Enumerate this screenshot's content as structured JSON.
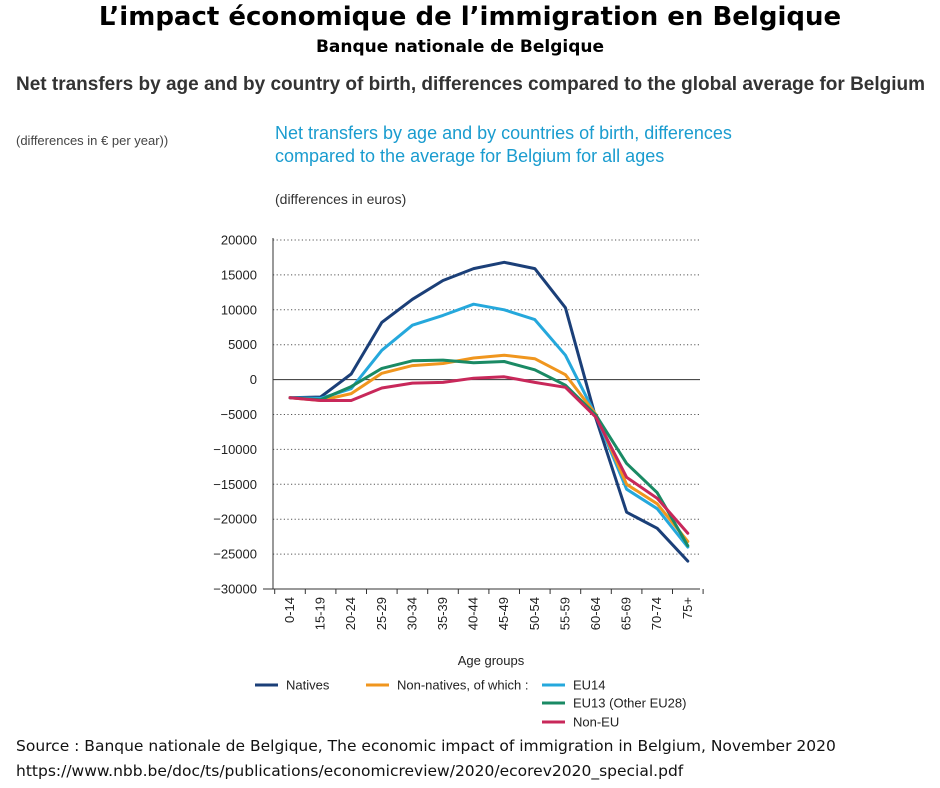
{
  "header": {
    "title": "L’impact économique de l’immigration en Belgique",
    "subtitle": "Banque nationale de Belgique"
  },
  "figure": {
    "title": "Net transfers by age and by country of birth, differences compared to the global average for Belgium",
    "units": "(differences in € per year))"
  },
  "chart_data": {
    "type": "line",
    "title": "Net transfers by age and by countries of birth, differences compared to the average for Belgium for all ages",
    "subtitle": "(differences in euros)",
    "xlabel": "Age groups",
    "ylabel": "",
    "ylim": [
      -30000,
      20000
    ],
    "yticks": [
      20000,
      15000,
      10000,
      5000,
      0,
      -5000,
      -10000,
      -15000,
      -20000,
      -25000,
      -30000
    ],
    "ytick_labels": [
      "20000",
      "15000",
      "10000",
      "5000",
      "0",
      "−5000",
      "−10000",
      "−15000",
      "−20000",
      "−25000",
      "−30000"
    ],
    "grid": "horizontal dotted",
    "legend": "bottom",
    "categories": [
      "0-14",
      "15-19",
      "20-24",
      "25-29",
      "30-34",
      "35-39",
      "40-44",
      "45-49",
      "50-54",
      "55-59",
      "60-64",
      "65-69",
      "70-74",
      "75+"
    ],
    "series": [
      {
        "name": "Natives",
        "color": "#1b3f78",
        "values": [
          -2600,
          -2500,
          800,
          8200,
          11500,
          14200,
          15900,
          16800,
          15900,
          10300,
          -5600,
          -19000,
          -21300,
          -26000
        ]
      },
      {
        "name": "Non-natives, of which :",
        "color": "#f0961e",
        "values": [
          -2600,
          -3000,
          -2000,
          900,
          2000,
          2300,
          3100,
          3500,
          3000,
          700,
          -5000,
          -15000,
          -17800,
          -23200
        ]
      },
      {
        "name": "EU14",
        "color": "#25a8dc",
        "values": [
          -2600,
          -2700,
          -1300,
          4200,
          7800,
          9200,
          10800,
          10000,
          8600,
          3500,
          -5200,
          -15700,
          -18500,
          -24000
        ]
      },
      {
        "name": "EU13 (Other EU28)",
        "color": "#1a8a64",
        "values": [
          -2600,
          -2900,
          -1000,
          1600,
          2700,
          2800,
          2400,
          2600,
          1400,
          -800,
          -5100,
          -12000,
          -16200,
          -23800
        ]
      },
      {
        "name": "Non-EU",
        "color": "#c8285a",
        "values": [
          -2600,
          -3000,
          -3000,
          -1200,
          -500,
          -400,
          200,
          400,
          -400,
          -1100,
          -5400,
          -14000,
          -17000,
          -22000
        ]
      }
    ]
  },
  "source": {
    "line": "Source : Banque nationale de Belgique, The economic impact of immigration in Belgium, November 2020",
    "url": "https://www.nbb.be/doc/ts/publications/economicreview/2020/ecorev2020_special.pdf"
  }
}
